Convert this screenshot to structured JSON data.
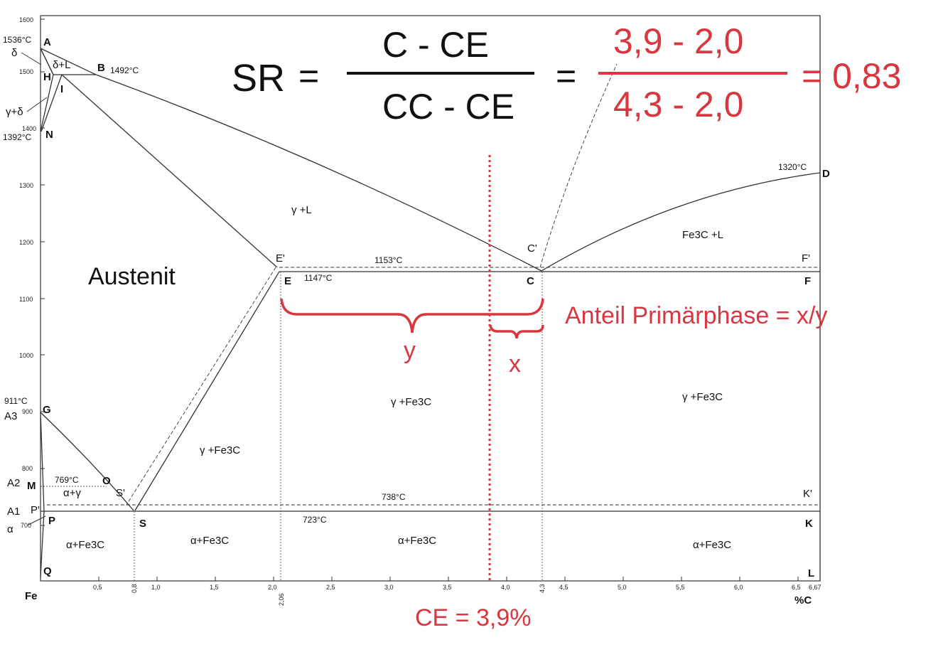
{
  "diagram": {
    "axis": {
      "y_ticks": [
        "1600",
        "1500",
        "1400",
        "1300",
        "1200",
        "1100",
        "1000",
        "900",
        "800",
        "700"
      ],
      "x_ticks": [
        "0,5",
        "0,8",
        "1,0",
        "1,5",
        "2,0",
        "2,06",
        "2,5",
        "3,0",
        "3,5",
        "4,0",
        "4,3",
        "4,5",
        "5,0",
        "5,5",
        "6,0",
        "6,5",
        "6,67"
      ],
      "x_origin_label": "Fe",
      "x_unit_label": "%C"
    },
    "points": [
      "A",
      "B",
      "H",
      "I",
      "N",
      "E'",
      "E",
      "C'",
      "C",
      "D",
      "F'",
      "F",
      "G",
      "O",
      "M",
      "S'",
      "S",
      "P'",
      "P",
      "K'",
      "K",
      "Q",
      "L"
    ],
    "temperatures": {
      "A": "1536°C",
      "B": "1492°C",
      "N": "1392°C",
      "D": "1320°C",
      "eutectic_stable": "1153°C",
      "eutectic": "1147°C",
      "G": "911°C",
      "M": "769°C",
      "eutectoid_stable": "738°C",
      "eutectoid": "723°C"
    },
    "critical_points": {
      "A3": "A3",
      "A2": "A2",
      "A1": "A1"
    },
    "phases": {
      "delta": "δ",
      "delta_L": "δ+L",
      "gamma_delta": "γ+δ",
      "gamma_L": "γ +L",
      "fe3c_L": "Fe3C +L",
      "gamma_fe3c": "γ +Fe3C",
      "alpha_gamma": "α+γ",
      "alpha": "α",
      "alpha_fe3c": "α+Fe3C"
    },
    "region_label": "Austenit"
  },
  "formula": {
    "lhs": "SR",
    "numerator": "C - CE",
    "denominator": "CC - CE",
    "equals": "=",
    "num_values": "3,9 - 2,0",
    "den_values": "4,3 - 2,0",
    "result": "= 0,83"
  },
  "annotations": {
    "fraction_label": "Anteil Primärphase = x/y",
    "y_label": "y",
    "x_label": "x",
    "ce_label": "CE = 3,9%"
  },
  "colors": {
    "accent": "#d9373f",
    "line": "#333333"
  }
}
